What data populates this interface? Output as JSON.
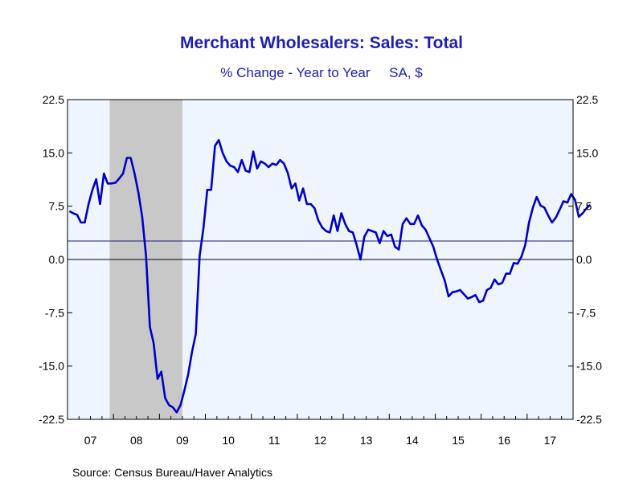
{
  "chart_data": {
    "type": "line",
    "title": "Merchant Wholesalers: Sales: Total",
    "subtitle": "% Change - Year to Year     SA, $",
    "source": "Source:  Census Bureau/Haver Analytics",
    "ylim": [
      -22.5,
      22.5
    ],
    "y_ticks": [
      "22.5",
      "15.0",
      "7.5",
      "0.0",
      "-7.5",
      "-15.0",
      "-22.5"
    ],
    "y_tick_values": [
      22.5,
      15.0,
      7.5,
      0.0,
      -7.5,
      -15.0,
      -22.5
    ],
    "x_start": "2007-01",
    "x_end": "2017-12",
    "x_tick_labels": [
      "07",
      "08",
      "09",
      "10",
      "11",
      "12",
      "13",
      "14",
      "15",
      "16",
      "17"
    ],
    "reference_lines": [
      0.0,
      2.6
    ],
    "recession_shading": {
      "start": "2007-12",
      "end": "2009-06"
    },
    "grid": false,
    "colors": {
      "line": "#0000c8",
      "plot_bg": "#eef5ff",
      "recession": "#c8c8c8",
      "title": "#1f1fb3"
    },
    "series": [
      {
        "values": [
          [
            0,
            6.8
          ],
          [
            1,
            6.5
          ],
          [
            2,
            6.3
          ],
          [
            3,
            5.2
          ],
          [
            4,
            5.2
          ],
          [
            5,
            7.8
          ],
          [
            6,
            9.8
          ],
          [
            7,
            11.3
          ],
          [
            8,
            7.8
          ],
          [
            9,
            12.1
          ],
          [
            10,
            10.7
          ],
          [
            11,
            10.7
          ],
          [
            12,
            10.8
          ],
          [
            13,
            11.4
          ],
          [
            14,
            12.1
          ],
          [
            15,
            14.3
          ],
          [
            16,
            14.3
          ],
          [
            17,
            12.1
          ],
          [
            18,
            9.4
          ],
          [
            19,
            6.0
          ],
          [
            20,
            0.5
          ],
          [
            21,
            -9.5
          ],
          [
            22,
            -11.8
          ],
          [
            23,
            -16.8
          ],
          [
            24,
            -15.8
          ],
          [
            25,
            -19.5
          ],
          [
            26,
            -20.5
          ],
          [
            27,
            -20.8
          ],
          [
            28,
            -21.5
          ],
          [
            29,
            -20.5
          ],
          [
            30,
            -18.5
          ],
          [
            31,
            -16.2
          ],
          [
            32,
            -13.0
          ],
          [
            33,
            -10.5
          ],
          [
            34,
            0.5
          ],
          [
            35,
            4.5
          ],
          [
            36,
            9.8
          ],
          [
            37,
            9.8
          ],
          [
            38,
            16.0
          ],
          [
            39,
            16.8
          ],
          [
            40,
            15.0
          ],
          [
            41,
            13.8
          ],
          [
            42,
            13.2
          ],
          [
            43,
            13.0
          ],
          [
            44,
            12.3
          ],
          [
            45,
            14.0
          ],
          [
            46,
            12.5
          ],
          [
            47,
            12.3
          ],
          [
            48,
            15.2
          ],
          [
            49,
            12.8
          ],
          [
            50,
            13.8
          ],
          [
            51,
            13.5
          ],
          [
            52,
            13.0
          ],
          [
            53,
            13.5
          ],
          [
            54,
            13.3
          ],
          [
            55,
            14.0
          ],
          [
            56,
            13.5
          ],
          [
            57,
            12.2
          ],
          [
            58,
            10.0
          ],
          [
            59,
            10.7
          ],
          [
            60,
            8.3
          ],
          [
            61,
            10.0
          ],
          [
            62,
            7.8
          ],
          [
            63,
            7.8
          ],
          [
            64,
            7.2
          ],
          [
            65,
            5.5
          ],
          [
            66,
            4.5
          ],
          [
            67,
            4.0
          ],
          [
            68,
            3.8
          ],
          [
            69,
            6.2
          ],
          [
            70,
            4.0
          ],
          [
            71,
            6.5
          ],
          [
            72,
            5.0
          ],
          [
            73,
            4.0
          ],
          [
            74,
            3.8
          ],
          [
            75,
            2.0
          ],
          [
            76,
            0.0
          ],
          [
            77,
            3.2
          ],
          [
            78,
            4.2
          ],
          [
            79,
            4.0
          ],
          [
            80,
            3.8
          ],
          [
            81,
            2.3
          ],
          [
            82,
            4.0
          ],
          [
            83,
            3.3
          ],
          [
            84,
            3.5
          ],
          [
            85,
            1.8
          ],
          [
            86,
            1.4
          ],
          [
            87,
            5.0
          ],
          [
            88,
            5.8
          ],
          [
            89,
            5.0
          ],
          [
            90,
            5.0
          ],
          [
            91,
            6.2
          ],
          [
            92,
            4.8
          ],
          [
            93,
            4.2
          ],
          [
            94,
            3.0
          ],
          [
            95,
            1.8
          ],
          [
            96,
            0.0
          ],
          [
            97,
            -1.5
          ],
          [
            98,
            -3.0
          ],
          [
            99,
            -5.2
          ],
          [
            100,
            -4.6
          ],
          [
            101,
            -4.5
          ],
          [
            102,
            -4.3
          ],
          [
            103,
            -4.9
          ],
          [
            104,
            -5.5
          ],
          [
            105,
            -5.3
          ],
          [
            106,
            -5.0
          ],
          [
            107,
            -6.0
          ],
          [
            108,
            -5.8
          ],
          [
            109,
            -4.3
          ],
          [
            110,
            -4.0
          ],
          [
            111,
            -2.8
          ],
          [
            112,
            -3.5
          ],
          [
            113,
            -3.3
          ],
          [
            114,
            -2.0
          ],
          [
            115,
            -2.0
          ],
          [
            116,
            -0.5
          ],
          [
            117,
            -0.6
          ],
          [
            118,
            0.4
          ],
          [
            119,
            2.0
          ],
          [
            120,
            5.2
          ],
          [
            121,
            7.3
          ],
          [
            122,
            8.8
          ],
          [
            123,
            7.6
          ],
          [
            124,
            7.3
          ],
          [
            125,
            6.2
          ],
          [
            126,
            5.2
          ],
          [
            127,
            5.9
          ],
          [
            128,
            7.0
          ],
          [
            129,
            8.2
          ],
          [
            130,
            8.0
          ],
          [
            131,
            9.2
          ],
          [
            132,
            8.4
          ],
          [
            133,
            6.0
          ],
          [
            134,
            6.5
          ],
          [
            135,
            7.2
          ],
          [
            136,
            7.7
          ]
        ]
      }
    ]
  }
}
